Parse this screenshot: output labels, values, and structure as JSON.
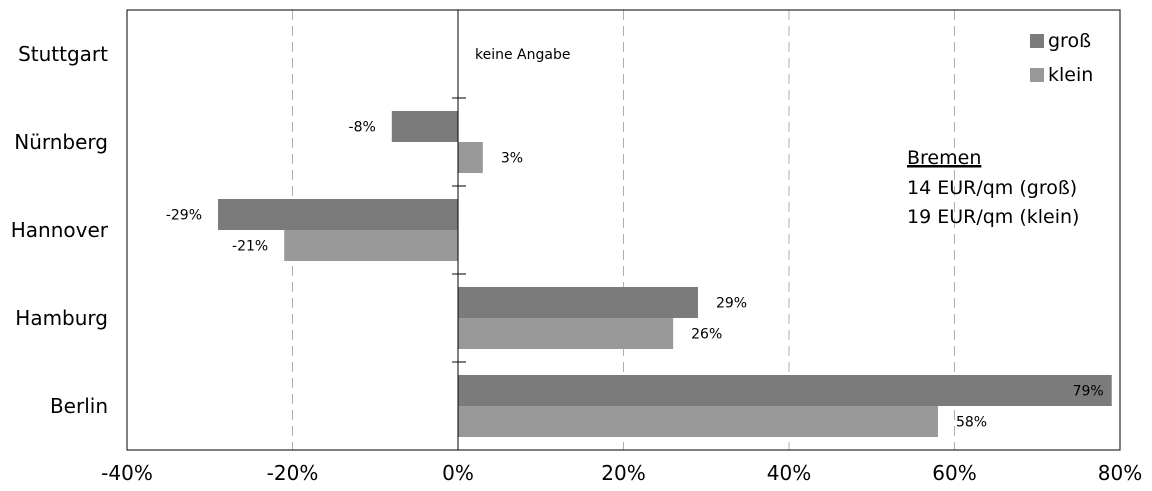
{
  "chart_data": {
    "type": "bar",
    "orientation": "horizontal",
    "categories": [
      "Stuttgart",
      "Nürnberg",
      "Hannover",
      "Hamburg",
      "Berlin"
    ],
    "series": [
      {
        "name": "groß",
        "values": [
          null,
          -8,
          -29,
          29,
          79
        ],
        "labels": [
          "",
          "-8%",
          "-29%",
          "29%",
          "79%"
        ],
        "color": "#7b7b7b"
      },
      {
        "name": "klein",
        "values": [
          null,
          3,
          -21,
          26,
          58
        ],
        "labels": [
          "",
          "3%",
          "-21%",
          "26%",
          "58%"
        ],
        "color": "#999999"
      }
    ],
    "xlim": [
      -40,
      80
    ],
    "xticks": [
      -40,
      -20,
      0,
      20,
      40,
      60,
      80
    ],
    "xtick_labels": [
      "-40%",
      "-20%",
      "0%",
      "20%",
      "40%",
      "60%",
      "80%"
    ],
    "grid": "vertical dashed",
    "legend_position": "top-right",
    "annotations": {
      "no_data_label": "keine Angabe",
      "reference_title": "Bremen",
      "reference_lines": [
        "14 EUR/qm (groß)",
        "19 EUR/qm (klein)"
      ]
    }
  }
}
